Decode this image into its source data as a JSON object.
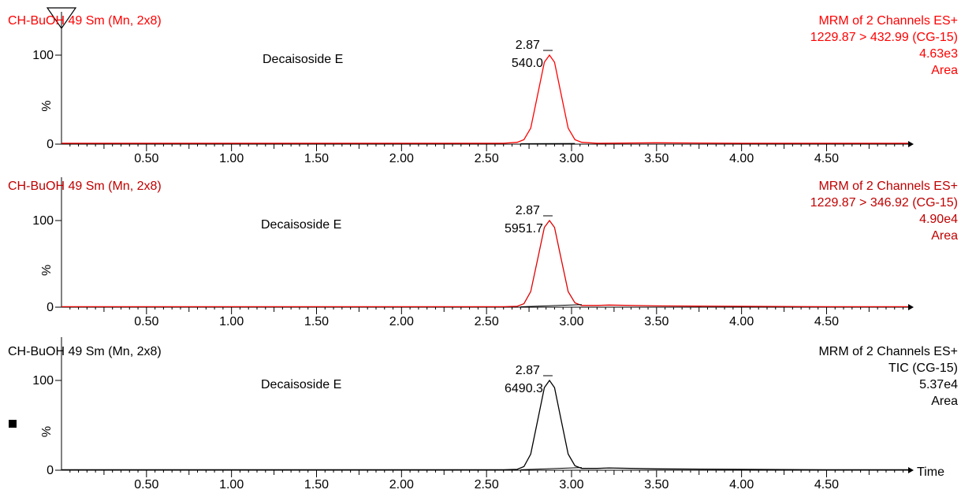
{
  "x_axis_label": "Time",
  "chart_data": [
    {
      "type": "line",
      "sample": "CH-BuOH 49 Sm (Mn, 2x8)",
      "compound": "Decaisoside E",
      "peak": {
        "rt": "2.87",
        "area": "540.0",
        "x": 2.87,
        "y": 100
      },
      "header": [
        "MRM of 2 Channels ES+",
        "1229.87 > 432.99 (CG-15)",
        "4.63e3",
        "Area"
      ],
      "color": "#ff0000",
      "sample_color": "#ff0000",
      "header_color": "#ff0000",
      "y_ticks": [
        {
          "value": 0,
          "label": "0"
        },
        {
          "value": 100,
          "label": "100"
        }
      ],
      "y_label": "%",
      "x_ticks": [
        {
          "value": 0.5,
          "label": "0.50"
        },
        {
          "value": 1.0,
          "label": "1.00"
        },
        {
          "value": 1.5,
          "label": "1.50"
        },
        {
          "value": 2.0,
          "label": "2.00"
        },
        {
          "value": 2.5,
          "label": "2.50"
        },
        {
          "value": 3.0,
          "label": "3.00"
        },
        {
          "value": 3.5,
          "label": "3.50"
        },
        {
          "value": 4.0,
          "label": "4.00"
        },
        {
          "value": 4.5,
          "label": "4.50"
        }
      ],
      "xlim": [
        0,
        4.98
      ],
      "ylim": [
        0,
        100
      ],
      "series": [
        {
          "x": [
            0.0,
            2.0,
            2.6,
            2.68,
            2.72,
            2.76,
            2.8,
            2.84,
            2.87,
            2.9,
            2.94,
            2.98,
            3.02,
            3.06,
            3.15,
            3.5,
            4.0,
            4.5,
            4.98
          ],
          "values": [
            1,
            1,
            1,
            2,
            5,
            18,
            55,
            92,
            100,
            92,
            55,
            18,
            5,
            2,
            1,
            1.5,
            1,
            1,
            1
          ]
        }
      ],
      "baseline": {
        "x": [
          2.7,
          3.02
        ],
        "values": [
          0.5,
          0.8
        ]
      }
    },
    {
      "type": "line",
      "sample": "CH-BuOH 49 Sm (Mn, 2x8)",
      "compound": "Decaisoside E",
      "peak": {
        "rt": "2.87",
        "area": "5951.7",
        "x": 2.87,
        "y": 100
      },
      "header": [
        "MRM of 2 Channels ES+",
        "1229.87 > 346.92 (CG-15)",
        "4.90e4",
        "Area"
      ],
      "color": "#e00000",
      "sample_color": "#c00000",
      "header_color": "#c00000",
      "y_ticks": [
        {
          "value": 0,
          "label": "0"
        },
        {
          "value": 100,
          "label": "100"
        }
      ],
      "y_label": "%",
      "x_ticks": [
        {
          "value": 0.5,
          "label": "0.50"
        },
        {
          "value": 1.0,
          "label": "1.00"
        },
        {
          "value": 1.5,
          "label": "1.50"
        },
        {
          "value": 2.0,
          "label": "2.00"
        },
        {
          "value": 2.5,
          "label": "2.50"
        },
        {
          "value": 3.0,
          "label": "3.00"
        },
        {
          "value": 3.5,
          "label": "3.50"
        },
        {
          "value": 4.0,
          "label": "4.00"
        },
        {
          "value": 4.5,
          "label": "4.50"
        }
      ],
      "xlim": [
        0,
        4.98
      ],
      "ylim": [
        0,
        100
      ],
      "series": [
        {
          "x": [
            0.0,
            2.0,
            2.6,
            2.68,
            2.72,
            2.76,
            2.8,
            2.84,
            2.87,
            2.9,
            2.94,
            2.98,
            3.02,
            3.06,
            3.15,
            3.22,
            3.5,
            4.0,
            4.5,
            4.98
          ],
          "values": [
            0.5,
            0.5,
            0.5,
            1,
            4,
            18,
            55,
            92,
            100,
            92,
            55,
            18,
            5,
            2,
            2,
            2.5,
            1.5,
            1,
            0.5,
            0.5
          ]
        }
      ],
      "baseline": {
        "x": [
          2.7,
          3.06
        ],
        "values": [
          0.5,
          3
        ]
      }
    },
    {
      "type": "line",
      "sample": "CH-BuOH 49 Sm (Mn, 2x8)",
      "compound": "Decaisoside E",
      "peak": {
        "rt": "2.87",
        "area": "6490.3",
        "x": 2.87,
        "y": 100
      },
      "header": [
        "MRM of 2 Channels ES+",
        "TIC (CG-15)",
        "5.37e4",
        "Area"
      ],
      "color": "#000000",
      "sample_color": "#000000",
      "header_color": "#000000",
      "y_ticks": [
        {
          "value": 0,
          "label": "0"
        },
        {
          "value": 100,
          "label": "100"
        }
      ],
      "y_label": "%",
      "x_ticks": [
        {
          "value": 0.5,
          "label": "0.50"
        },
        {
          "value": 1.0,
          "label": "1.00"
        },
        {
          "value": 1.5,
          "label": "1.50"
        },
        {
          "value": 2.0,
          "label": "2.00"
        },
        {
          "value": 2.5,
          "label": "2.50"
        },
        {
          "value": 3.0,
          "label": "3.00"
        },
        {
          "value": 3.5,
          "label": "3.50"
        },
        {
          "value": 4.0,
          "label": "4.00"
        },
        {
          "value": 4.5,
          "label": "4.50"
        }
      ],
      "xlim": [
        0,
        4.98
      ],
      "ylim": [
        0,
        100
      ],
      "series": [
        {
          "x": [
            0.0,
            2.0,
            2.6,
            2.68,
            2.72,
            2.76,
            2.8,
            2.84,
            2.87,
            2.9,
            2.94,
            2.98,
            3.02,
            3.06,
            3.15,
            3.22,
            3.5,
            4.0,
            4.5,
            4.98
          ],
          "values": [
            0.5,
            0.5,
            0.5,
            1,
            4,
            18,
            55,
            92,
            100,
            92,
            55,
            18,
            5,
            2,
            2,
            2.5,
            1.5,
            1,
            0.5,
            0.5
          ]
        }
      ],
      "baseline": {
        "x": [
          2.7,
          3.06
        ],
        "values": [
          0.5,
          3
        ]
      }
    }
  ]
}
